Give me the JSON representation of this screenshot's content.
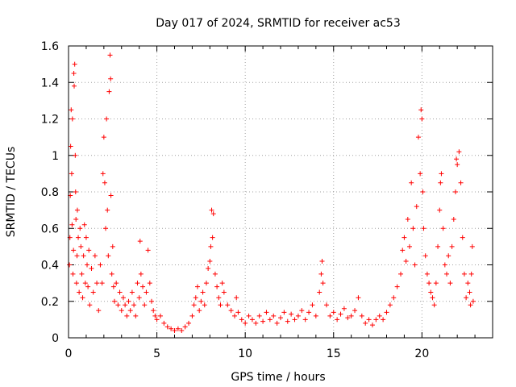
{
  "chart_data": {
    "type": "scatter",
    "title": "Day 017 of 2024, SRMTID for receiver ac53",
    "xlabel": "GPS time / hours",
    "ylabel": "SRMTID / TECUs",
    "xlim": [
      0,
      24
    ],
    "ylim": [
      0,
      1.6
    ],
    "grid": true,
    "marker": "+",
    "color": "#ff0000",
    "x_ticks": [
      0,
      5,
      10,
      15,
      20
    ],
    "y_ticks": [
      0,
      0.2,
      0.4,
      0.6,
      0.8,
      1,
      1.2,
      1.4,
      1.6
    ],
    "x_tick_labels": [
      "0",
      "5",
      "10",
      "15",
      "20"
    ],
    "y_tick_labels": [
      "0",
      "0.2",
      "0.4",
      "0.6",
      "0.8",
      "1",
      "1.2",
      "1.4",
      "1.6"
    ],
    "series": [
      {
        "name": "SRMTID",
        "points": [
          [
            0.05,
            0.4
          ],
          [
            0.08,
            0.55
          ],
          [
            0.1,
            0.78
          ],
          [
            0.12,
            1.05
          ],
          [
            0.15,
            1.25
          ],
          [
            0.18,
            0.9
          ],
          [
            0.2,
            0.62
          ],
          [
            0.22,
            1.2
          ],
          [
            0.25,
            0.35
          ],
          [
            0.28,
            0.48
          ],
          [
            0.3,
            1.45
          ],
          [
            0.32,
            1.38
          ],
          [
            0.35,
            1.5
          ],
          [
            0.38,
            1.0
          ],
          [
            0.4,
            0.8
          ],
          [
            0.42,
            0.65
          ],
          [
            0.45,
            0.3
          ],
          [
            0.48,
            0.45
          ],
          [
            0.5,
            0.7
          ],
          [
            0.55,
            0.55
          ],
          [
            0.6,
            0.25
          ],
          [
            0.65,
            0.6
          ],
          [
            0.7,
            0.5
          ],
          [
            0.75,
            0.35
          ],
          [
            0.8,
            0.22
          ],
          [
            0.85,
            0.45
          ],
          [
            0.9,
            0.62
          ],
          [
            0.95,
            0.3
          ],
          [
            1.0,
            0.55
          ],
          [
            1.05,
            0.4
          ],
          [
            1.1,
            0.28
          ],
          [
            1.15,
            0.48
          ],
          [
            1.2,
            0.18
          ],
          [
            1.3,
            0.38
          ],
          [
            1.4,
            0.25
          ],
          [
            1.5,
            0.45
          ],
          [
            1.6,
            0.3
          ],
          [
            1.7,
            0.15
          ],
          [
            1.8,
            0.4
          ],
          [
            1.9,
            0.3
          ],
          [
            1.95,
            0.9
          ],
          [
            2.0,
            1.1
          ],
          [
            2.05,
            0.85
          ],
          [
            2.1,
            0.6
          ],
          [
            2.15,
            1.2
          ],
          [
            2.2,
            0.7
          ],
          [
            2.25,
            0.45
          ],
          [
            2.3,
            1.35
          ],
          [
            2.35,
            1.55
          ],
          [
            2.38,
            1.42
          ],
          [
            2.4,
            0.78
          ],
          [
            2.45,
            0.35
          ],
          [
            2.5,
            0.5
          ],
          [
            2.55,
            0.28
          ],
          [
            2.6,
            0.2
          ],
          [
            2.7,
            0.3
          ],
          [
            2.8,
            0.18
          ],
          [
            2.9,
            0.25
          ],
          [
            3.0,
            0.15
          ],
          [
            3.1,
            0.22
          ],
          [
            3.2,
            0.18
          ],
          [
            3.3,
            0.12
          ],
          [
            3.4,
            0.2
          ],
          [
            3.5,
            0.15
          ],
          [
            3.6,
            0.25
          ],
          [
            3.7,
            0.18
          ],
          [
            3.8,
            0.12
          ],
          [
            3.9,
            0.3
          ],
          [
            4.0,
            0.22
          ],
          [
            4.05,
            0.53
          ],
          [
            4.1,
            0.35
          ],
          [
            4.2,
            0.28
          ],
          [
            4.3,
            0.18
          ],
          [
            4.4,
            0.25
          ],
          [
            4.5,
            0.48
          ],
          [
            4.6,
            0.3
          ],
          [
            4.7,
            0.2
          ],
          [
            4.8,
            0.15
          ],
          [
            4.9,
            0.12
          ],
          [
            5.0,
            0.1
          ],
          [
            5.2,
            0.12
          ],
          [
            5.4,
            0.08
          ],
          [
            5.6,
            0.06
          ],
          [
            5.8,
            0.05
          ],
          [
            6.0,
            0.04
          ],
          [
            6.2,
            0.05
          ],
          [
            6.4,
            0.04
          ],
          [
            6.6,
            0.06
          ],
          [
            6.8,
            0.08
          ],
          [
            7.0,
            0.12
          ],
          [
            7.1,
            0.18
          ],
          [
            7.2,
            0.22
          ],
          [
            7.3,
            0.28
          ],
          [
            7.4,
            0.15
          ],
          [
            7.5,
            0.2
          ],
          [
            7.6,
            0.25
          ],
          [
            7.7,
            0.18
          ],
          [
            7.8,
            0.3
          ],
          [
            7.9,
            0.38
          ],
          [
            8.0,
            0.42
          ],
          [
            8.05,
            0.5
          ],
          [
            8.1,
            0.7
          ],
          [
            8.15,
            0.55
          ],
          [
            8.2,
            0.68
          ],
          [
            8.3,
            0.35
          ],
          [
            8.4,
            0.28
          ],
          [
            8.5,
            0.22
          ],
          [
            8.6,
            0.18
          ],
          [
            8.7,
            0.3
          ],
          [
            8.8,
            0.25
          ],
          [
            9.0,
            0.18
          ],
          [
            9.2,
            0.15
          ],
          [
            9.4,
            0.12
          ],
          [
            9.5,
            0.22
          ],
          [
            9.6,
            0.14
          ],
          [
            9.8,
            0.1
          ],
          [
            10.0,
            0.08
          ],
          [
            10.2,
            0.12
          ],
          [
            10.4,
            0.1
          ],
          [
            10.6,
            0.08
          ],
          [
            10.8,
            0.12
          ],
          [
            11.0,
            0.09
          ],
          [
            11.2,
            0.14
          ],
          [
            11.4,
            0.1
          ],
          [
            11.6,
            0.12
          ],
          [
            11.8,
            0.08
          ],
          [
            12.0,
            0.11
          ],
          [
            12.2,
            0.14
          ],
          [
            12.4,
            0.09
          ],
          [
            12.6,
            0.13
          ],
          [
            12.8,
            0.1
          ],
          [
            13.0,
            0.12
          ],
          [
            13.2,
            0.15
          ],
          [
            13.4,
            0.1
          ],
          [
            13.6,
            0.14
          ],
          [
            13.8,
            0.18
          ],
          [
            14.0,
            0.12
          ],
          [
            14.2,
            0.25
          ],
          [
            14.3,
            0.35
          ],
          [
            14.35,
            0.42
          ],
          [
            14.4,
            0.3
          ],
          [
            14.6,
            0.18
          ],
          [
            14.8,
            0.12
          ],
          [
            15.0,
            0.14
          ],
          [
            15.2,
            0.1
          ],
          [
            15.4,
            0.13
          ],
          [
            15.6,
            0.16
          ],
          [
            15.8,
            0.11
          ],
          [
            16.0,
            0.12
          ],
          [
            16.2,
            0.15
          ],
          [
            16.4,
            0.22
          ],
          [
            16.6,
            0.12
          ],
          [
            16.8,
            0.08
          ],
          [
            17.0,
            0.1
          ],
          [
            17.2,
            0.07
          ],
          [
            17.4,
            0.1
          ],
          [
            17.6,
            0.12
          ],
          [
            17.8,
            0.1
          ],
          [
            18.0,
            0.14
          ],
          [
            18.2,
            0.18
          ],
          [
            18.4,
            0.22
          ],
          [
            18.6,
            0.28
          ],
          [
            18.8,
            0.35
          ],
          [
            18.9,
            0.48
          ],
          [
            19.0,
            0.55
          ],
          [
            19.1,
            0.42
          ],
          [
            19.2,
            0.65
          ],
          [
            19.3,
            0.5
          ],
          [
            19.4,
            0.85
          ],
          [
            19.5,
            0.6
          ],
          [
            19.6,
            0.4
          ],
          [
            19.7,
            0.72
          ],
          [
            19.8,
            1.1
          ],
          [
            19.9,
            0.9
          ],
          [
            19.95,
            1.25
          ],
          [
            20.0,
            1.2
          ],
          [
            20.05,
            0.8
          ],
          [
            20.1,
            0.6
          ],
          [
            20.2,
            0.45
          ],
          [
            20.3,
            0.35
          ],
          [
            20.4,
            0.3
          ],
          [
            20.5,
            0.25
          ],
          [
            20.6,
            0.22
          ],
          [
            20.7,
            0.18
          ],
          [
            20.8,
            0.3
          ],
          [
            20.9,
            0.5
          ],
          [
            21.0,
            0.7
          ],
          [
            21.05,
            0.85
          ],
          [
            21.1,
            0.9
          ],
          [
            21.2,
            0.6
          ],
          [
            21.3,
            0.4
          ],
          [
            21.4,
            0.35
          ],
          [
            21.5,
            0.45
          ],
          [
            21.6,
            0.3
          ],
          [
            21.7,
            0.5
          ],
          [
            21.8,
            0.65
          ],
          [
            21.9,
            0.8
          ],
          [
            21.95,
            0.98
          ],
          [
            22.0,
            0.95
          ],
          [
            22.1,
            1.02
          ],
          [
            22.2,
            0.85
          ],
          [
            22.3,
            0.55
          ],
          [
            22.4,
            0.35
          ],
          [
            22.5,
            0.22
          ],
          [
            22.6,
            0.3
          ],
          [
            22.7,
            0.25
          ],
          [
            22.75,
            0.18
          ],
          [
            22.8,
            0.35
          ],
          [
            22.85,
            0.5
          ],
          [
            22.9,
            0.2
          ]
        ]
      }
    ]
  }
}
